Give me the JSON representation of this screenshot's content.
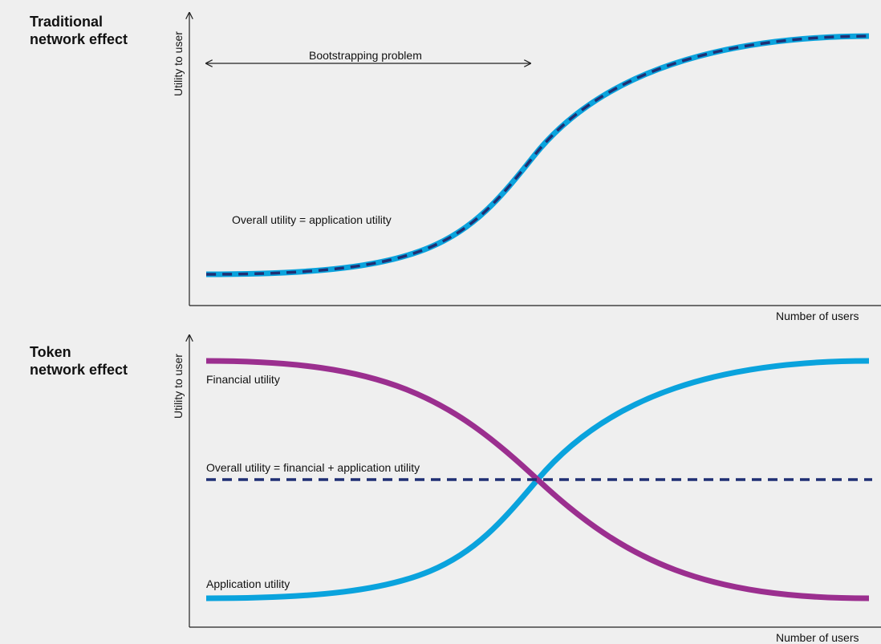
{
  "panels": [
    {
      "title_line1": "Traditional",
      "title_line2": "network effect",
      "ylabel": "Utility to user",
      "xlabel": "Number of users",
      "arrow_label": "Bootstrapping problem",
      "curve_label": "Overall utility = application utility"
    },
    {
      "title_line1": "Token",
      "title_line2": "network effect",
      "ylabel": "Utility to user",
      "xlabel": "Number of users",
      "financial_label": "Financial utility",
      "overall_label": "Overall utility = financial + application utility",
      "application_label": "Application utility"
    }
  ],
  "colors": {
    "application": "#0aa3dd",
    "financial": "#9b2f8f",
    "overall": "#1f2f73",
    "axis": "#222222",
    "background": "#efefef"
  }
}
